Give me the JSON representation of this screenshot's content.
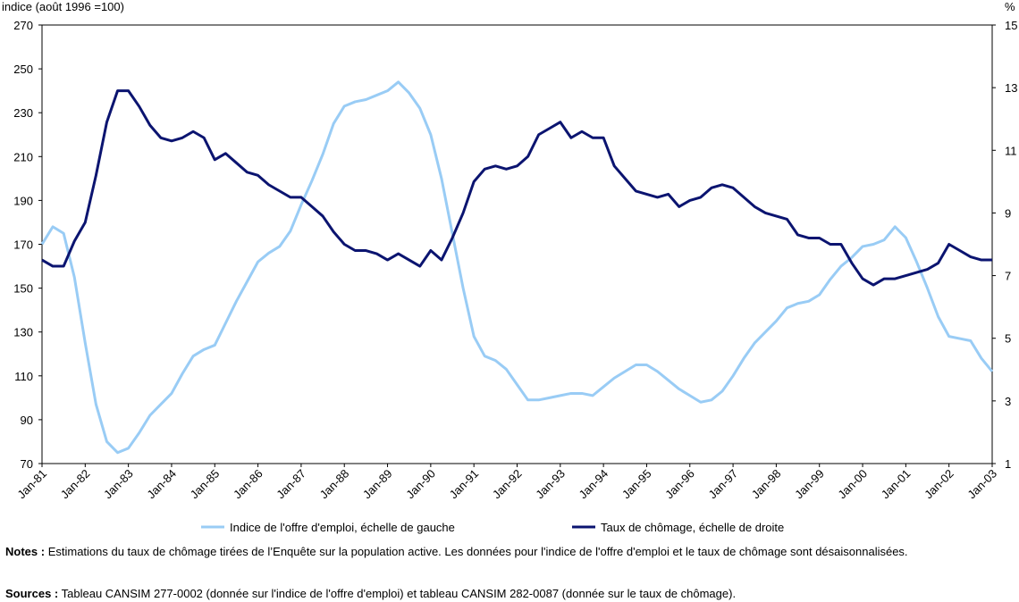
{
  "chart_data": {
    "type": "line",
    "y_label": "indice (août 1996 =100)",
    "y2_label": "%",
    "x": [
      1981,
      1981.25,
      1981.5,
      1981.75,
      1982,
      1982.25,
      1982.5,
      1982.75,
      1983,
      1983.25,
      1983.5,
      1983.75,
      1984,
      1984.25,
      1984.5,
      1984.75,
      1985,
      1985.25,
      1985.5,
      1985.75,
      1986,
      1986.25,
      1986.5,
      1986.75,
      1987,
      1987.25,
      1987.5,
      1987.75,
      1988,
      1988.25,
      1988.5,
      1988.75,
      1989,
      1989.25,
      1989.5,
      1989.75,
      1990,
      1990.25,
      1990.5,
      1990.75,
      1991,
      1991.25,
      1991.5,
      1991.75,
      1992,
      1992.25,
      1992.5,
      1992.75,
      1993,
      1993.25,
      1993.5,
      1993.75,
      1994,
      1994.25,
      1994.5,
      1994.75,
      1995,
      1995.25,
      1995.5,
      1995.75,
      1996,
      1996.25,
      1996.5,
      1996.75,
      1997,
      1997.25,
      1997.5,
      1997.75,
      1998,
      1998.25,
      1998.5,
      1998.75,
      1999,
      1999.25,
      1999.5,
      1999.75,
      2000,
      2000.25,
      2000.5,
      2000.75,
      2001,
      2001.25,
      2001.5,
      2001.75,
      2002,
      2002.25,
      2002.5,
      2002.75,
      2003
    ],
    "series": [
      {
        "name": "Indice de l'offre d'emploi, échelle de gauche",
        "color": "#99ccf5",
        "axis": "y",
        "values": [
          170,
          178,
          175,
          155,
          125,
          97,
          80,
          75,
          77,
          84,
          92,
          97,
          102,
          111,
          119,
          122,
          124,
          134,
          144,
          153,
          162,
          166,
          169,
          176,
          188,
          199,
          211,
          225,
          233,
          235,
          236,
          238,
          240,
          244,
          239,
          232,
          220,
          200,
          175,
          150,
          128,
          119,
          117,
          113,
          106,
          99,
          99,
          100,
          101,
          102,
          102,
          101,
          105,
          109,
          112,
          115,
          115,
          112,
          108,
          104,
          101,
          98,
          99,
          103,
          110,
          118,
          125,
          130,
          135,
          141,
          143,
          144,
          147,
          154,
          160,
          164,
          169,
          170,
          172,
          178,
          173,
          162,
          150,
          137,
          128,
          127,
          126,
          118,
          112
        ]
      },
      {
        "name": "Taux de chômage, échelle de droite",
        "color": "#0b1470",
        "axis": "y2",
        "values": [
          7.5,
          7.3,
          7.3,
          8.1,
          8.7,
          10.2,
          11.9,
          12.9,
          12.9,
          12.4,
          11.8,
          11.4,
          11.3,
          11.4,
          11.6,
          11.4,
          10.7,
          10.9,
          10.6,
          10.3,
          10.2,
          9.9,
          9.7,
          9.5,
          9.5,
          9.2,
          8.9,
          8.4,
          8.0,
          7.8,
          7.8,
          7.7,
          7.5,
          7.7,
          7.5,
          7.3,
          7.8,
          7.5,
          8.2,
          9.0,
          10.0,
          10.4,
          10.5,
          10.4,
          10.5,
          10.8,
          11.5,
          11.7,
          11.9,
          11.4,
          11.6,
          11.4,
          11.4,
          10.5,
          10.1,
          9.7,
          9.6,
          9.5,
          9.6,
          9.2,
          9.4,
          9.5,
          9.8,
          9.9,
          9.8,
          9.5,
          9.2,
          9.0,
          8.9,
          8.8,
          8.3,
          8.2,
          8.2,
          8.0,
          8.0,
          7.4,
          6.9,
          6.7,
          6.9,
          6.9,
          7.0,
          7.1,
          7.2,
          7.4,
          8.0,
          7.8,
          7.6,
          7.5,
          7.5
        ]
      }
    ],
    "xlim": [
      1981,
      2003
    ],
    "xticks": [
      {
        "value": 1981,
        "label": "Jan-81"
      },
      {
        "value": 1982,
        "label": "Jan-82"
      },
      {
        "value": 1983,
        "label": "Jan-83"
      },
      {
        "value": 1984,
        "label": "Jan-84"
      },
      {
        "value": 1985,
        "label": "Jan-85"
      },
      {
        "value": 1986,
        "label": "Jan-86"
      },
      {
        "value": 1987,
        "label": "Jan-87"
      },
      {
        "value": 1988,
        "label": "Jan-88"
      },
      {
        "value": 1989,
        "label": "Jan-89"
      },
      {
        "value": 1990,
        "label": "Jan-90"
      },
      {
        "value": 1991,
        "label": "Jan-91"
      },
      {
        "value": 1992,
        "label": "Jan-92"
      },
      {
        "value": 1993,
        "label": "Jan-93"
      },
      {
        "value": 1994,
        "label": "Jan-94"
      },
      {
        "value": 1995,
        "label": "Jan-95"
      },
      {
        "value": 1996,
        "label": "Jan-96"
      },
      {
        "value": 1997,
        "label": "Jan-97"
      },
      {
        "value": 1998,
        "label": "Jan-98"
      },
      {
        "value": 1999,
        "label": "Jan-99"
      },
      {
        "value": 2000,
        "label": "Jan-00"
      },
      {
        "value": 2001,
        "label": "Jan-01"
      },
      {
        "value": 2002,
        "label": "Jan-02"
      },
      {
        "value": 2003,
        "label": "Jan-03"
      }
    ],
    "ylim": [
      70,
      270
    ],
    "yticks": [
      70,
      90,
      110,
      130,
      150,
      170,
      190,
      210,
      230,
      250,
      270
    ],
    "y2lim": [
      1,
      15
    ],
    "y2ticks": [
      1,
      3,
      5,
      7,
      9,
      11,
      13,
      15
    ],
    "grid": false,
    "legend": "bottom"
  },
  "notes": {
    "label": "Notes :",
    "text": "Estimations du taux de chômage tirées de l’Enquête sur la population active. Les données pour l'indice de l'offre d'emploi et le taux de chômage sont désaisonnalisées."
  },
  "sources": {
    "label": "Sources :",
    "text": "Tableau CANSIM 277-0002 (donnée sur l'indice de l'offre d'emploi) et tableau CANSIM 282-0087 (donnée sur le taux de chômage)."
  }
}
